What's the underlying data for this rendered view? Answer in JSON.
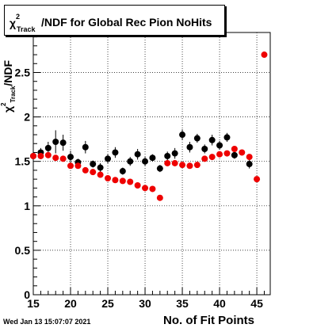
{
  "title": {
    "chi": "χ",
    "sup": "2",
    "sub": "Track",
    "rest": "/NDF for Global Rec Pion NoHits"
  },
  "xlabel": "No. of Fit Points",
  "ylabel": {
    "chi": "χ",
    "sup": "2",
    "sub": "Track",
    "rest": "/NDF"
  },
  "datestamp": "Wed Jan 13 15:07:07 2021",
  "colors": {
    "series_black": "#000000",
    "series_red": "#ee0000",
    "axis": "#000000",
    "grid": "#000000"
  },
  "chart_data": {
    "type": "scatter",
    "xlim": [
      15,
      46.8
    ],
    "ylim": [
      0,
      2.95
    ],
    "grid": true,
    "legend": "none",
    "xticks": [
      15,
      20,
      25,
      30,
      35,
      40,
      45
    ],
    "xtick_labels": [
      "15",
      "20",
      "25",
      "30",
      "35",
      "40",
      "45"
    ],
    "yticks": [
      0,
      0.5,
      1,
      1.5,
      2,
      2.5
    ],
    "ytick_labels": [
      "0",
      "0.5",
      "1",
      "1.5",
      "2",
      "2.5"
    ],
    "series": [
      {
        "color": "black",
        "points": [
          {
            "x": 15,
            "y": 1.56,
            "err": 0.05
          },
          {
            "x": 16,
            "y": 1.6,
            "err": 0.05
          },
          {
            "x": 17,
            "y": 1.65,
            "err": 0.07
          },
          {
            "x": 18,
            "y": 1.72,
            "err": 0.13
          },
          {
            "x": 19,
            "y": 1.71,
            "err": 0.09
          },
          {
            "x": 20,
            "y": 1.55,
            "err": 0.07
          },
          {
            "x": 21,
            "y": 1.49,
            "err": 0.04
          },
          {
            "x": 22,
            "y": 1.66,
            "err": 0.07
          },
          {
            "x": 23,
            "y": 1.47,
            "err": 0.04
          },
          {
            "x": 24,
            "y": 1.43,
            "err": 0.05
          },
          {
            "x": 25,
            "y": 1.53,
            "err": 0.05
          },
          {
            "x": 26,
            "y": 1.6,
            "err": 0.06
          },
          {
            "x": 27,
            "y": 1.39,
            "err": 0.04
          },
          {
            "x": 28,
            "y": 1.5,
            "err": 0.05
          },
          {
            "x": 29,
            "y": 1.58,
            "err": 0.06
          },
          {
            "x": 30,
            "y": 1.5,
            "err": 0.05
          },
          {
            "x": 31,
            "y": 1.54,
            "err": 0.04
          },
          {
            "x": 32,
            "y": 1.42,
            "err": 0.04
          },
          {
            "x": 33,
            "y": 1.56,
            "err": 0.05
          },
          {
            "x": 34,
            "y": 1.59,
            "err": 0.06
          },
          {
            "x": 35,
            "y": 1.8,
            "err": 0.06
          },
          {
            "x": 36,
            "y": 1.66,
            "err": 0.06
          },
          {
            "x": 37,
            "y": 1.76,
            "err": 0.05
          },
          {
            "x": 38,
            "y": 1.64,
            "err": 0.05
          },
          {
            "x": 39,
            "y": 1.74,
            "err": 0.06
          },
          {
            "x": 40,
            "y": 1.68,
            "err": 0.05
          },
          {
            "x": 41,
            "y": 1.77,
            "err": 0.05
          },
          {
            "x": 42,
            "y": 1.57,
            "err": 0.04
          },
          {
            "x": 44,
            "y": 1.47,
            "err": 0.05
          }
        ]
      },
      {
        "color": "red",
        "points": [
          {
            "x": 15,
            "y": 1.56,
            "err": 0.02
          },
          {
            "x": 16,
            "y": 1.56,
            "err": 0.02
          },
          {
            "x": 17,
            "y": 1.57,
            "err": 0.02
          },
          {
            "x": 18,
            "y": 1.54,
            "err": 0.02
          },
          {
            "x": 19,
            "y": 1.53,
            "err": 0.02
          },
          {
            "x": 20,
            "y": 1.45,
            "err": 0.02
          },
          {
            "x": 21,
            "y": 1.45,
            "err": 0.02
          },
          {
            "x": 22,
            "y": 1.4,
            "err": 0.02
          },
          {
            "x": 23,
            "y": 1.38,
            "err": 0.02
          },
          {
            "x": 24,
            "y": 1.35,
            "err": 0.02
          },
          {
            "x": 25,
            "y": 1.31,
            "err": 0.02
          },
          {
            "x": 26,
            "y": 1.29,
            "err": 0.02
          },
          {
            "x": 27,
            "y": 1.28,
            "err": 0.02
          },
          {
            "x": 28,
            "y": 1.27,
            "err": 0.02
          },
          {
            "x": 29,
            "y": 1.23,
            "err": 0.02
          },
          {
            "x": 30,
            "y": 1.2,
            "err": 0.02
          },
          {
            "x": 31,
            "y": 1.19,
            "err": 0.02
          },
          {
            "x": 32,
            "y": 1.09,
            "err": 0.02
          },
          {
            "x": 33,
            "y": 1.48,
            "err": 0.02
          },
          {
            "x": 34,
            "y": 1.48,
            "err": 0.02
          },
          {
            "x": 35,
            "y": 1.46,
            "err": 0.02
          },
          {
            "x": 36,
            "y": 1.45,
            "err": 0.02
          },
          {
            "x": 37,
            "y": 1.46,
            "err": 0.02
          },
          {
            "x": 38,
            "y": 1.53,
            "err": 0.02
          },
          {
            "x": 39,
            "y": 1.55,
            "err": 0.02
          },
          {
            "x": 40,
            "y": 1.58,
            "err": 0.02
          },
          {
            "x": 41,
            "y": 1.59,
            "err": 0.02
          },
          {
            "x": 42,
            "y": 1.64,
            "err": 0.02
          },
          {
            "x": 43,
            "y": 1.6,
            "err": 0.02
          },
          {
            "x": 44,
            "y": 1.55,
            "err": 0.02
          },
          {
            "x": 45,
            "y": 1.3,
            "err": 0.02
          },
          {
            "x": 46,
            "y": 2.7,
            "err": 0.02
          }
        ]
      }
    ]
  }
}
